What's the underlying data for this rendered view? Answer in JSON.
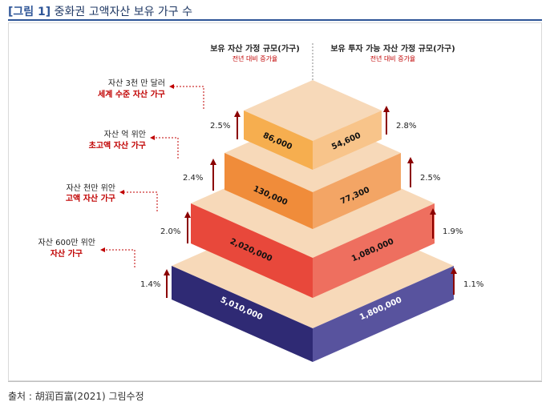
{
  "title": {
    "prefix": "[그림 1]",
    "text": "중화권 고액자산 보유 가구 수"
  },
  "headers": {
    "left": {
      "title": "보유 자산 가정 규모(가구)",
      "sub": "전년 대비 증가율"
    },
    "right": {
      "title": "보유 투자 가능 자산 가정 규모(가구)",
      "sub": "전년 대비 증가율"
    }
  },
  "tiers": [
    {
      "label1": "자산 3천 만 달러",
      "label2": "세계 수준 자산 가구",
      "left_value": "86,000",
      "right_value": "54,600",
      "left_growth": "2.5%",
      "right_growth": "2.8%",
      "left_color": "#f6ae4f",
      "right_color": "#f8c48a",
      "top_color": "#f7d9b9"
    },
    {
      "label1": "자산 억 위안",
      "label2": "초고액 자산 가구",
      "left_value": "130,000",
      "right_value": "77,300",
      "left_growth": "2.4%",
      "right_growth": "2.5%",
      "left_color": "#f08c3a",
      "right_color": "#f3a565",
      "top_color": "#f7d9b9"
    },
    {
      "label1": "자산 천만 위안",
      "label2": "고액 자산 가구",
      "left_value": "2,020,000",
      "right_value": "1,080,000",
      "left_growth": "2.0%",
      "right_growth": "1.9%",
      "left_color": "#e8483b",
      "right_color": "#ee6f5f",
      "top_color": "#f7d9b9"
    },
    {
      "label1": "자산 600만 위안",
      "label2": "자산 가구",
      "left_value": "5,010,000",
      "right_value": "1,800,000",
      "left_growth": "1.4%",
      "right_growth": "1.1%",
      "left_color": "#2f2a74",
      "right_color": "#58539e",
      "top_color": "#f7d9b9"
    }
  ],
  "source": "출처 : 胡润百富(2021) 그림수정"
}
